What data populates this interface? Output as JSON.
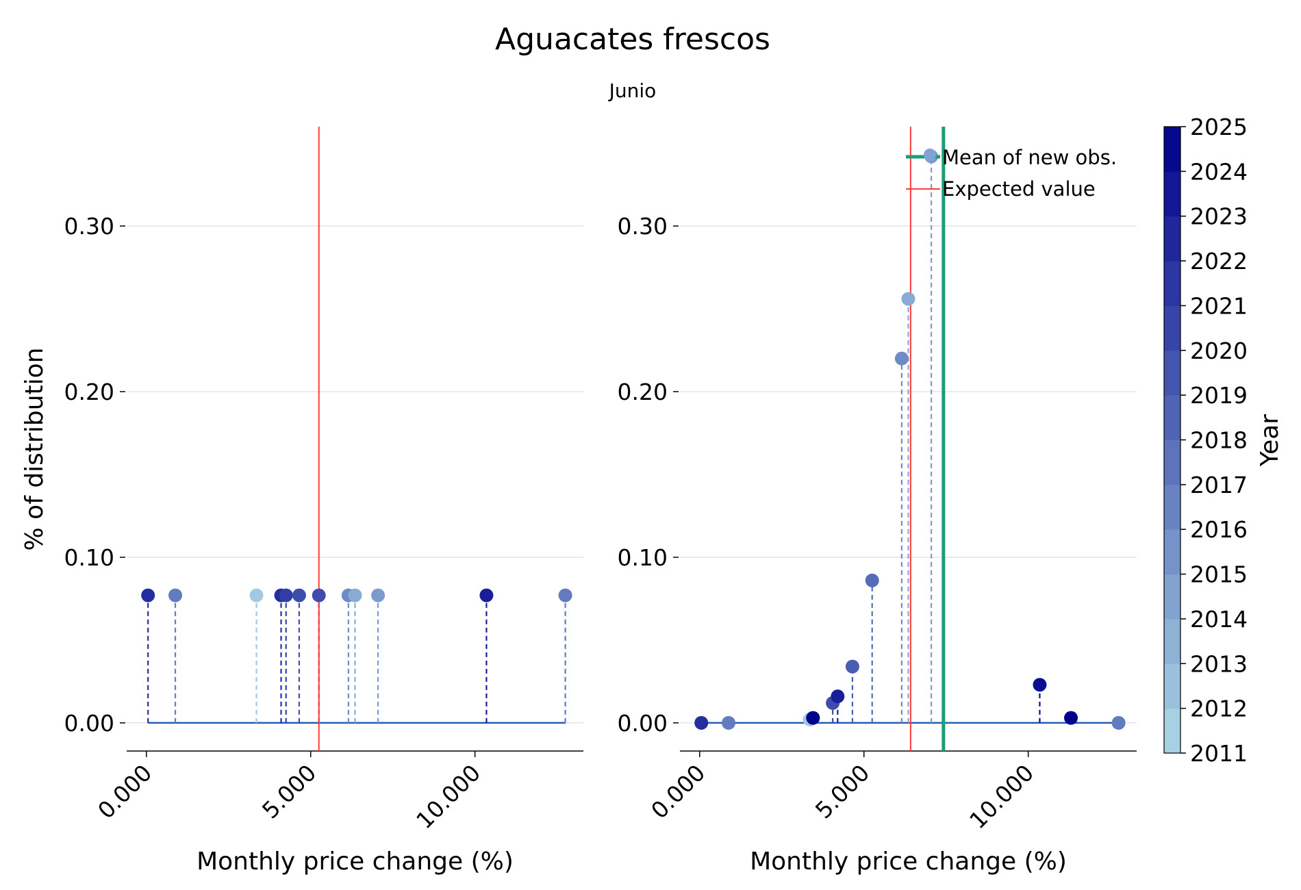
{
  "title": "Aguacates frescos",
  "subtitle": "Junio",
  "colors": {
    "expected": "#ff3b3b",
    "new_mean": "#1b9e77",
    "baseline": "#1f5fb4",
    "grid": "#dddddd",
    "colorbar_low": "#add8e6",
    "colorbar_high": "#00008b"
  },
  "colorbar": {
    "label": "Year",
    "ticks": [
      "2011",
      "2012",
      "2013",
      "2014",
      "2015",
      "2016",
      "2017",
      "2018",
      "2019",
      "2020",
      "2021",
      "2022",
      "2023",
      "2024",
      "2025"
    ]
  },
  "legend": {
    "new_mean_label": "Mean of new obs.",
    "expected_label": "Expected value"
  },
  "chart_data": [
    {
      "type": "scatter",
      "style": "lollipop",
      "xlabel": "Monthly price change (%)",
      "ylabel": "% of distribution",
      "xlim": [
        -0.6,
        13.3
      ],
      "ylim": [
        -0.017,
        0.36
      ],
      "xticks": [
        0,
        5,
        10
      ],
      "xtick_labels": [
        "0.000",
        "5.000",
        "10.000"
      ],
      "yticks": [
        0,
        0.1,
        0.2,
        0.3
      ],
      "ytick_labels": [
        "0.00",
        "0.10",
        "0.20",
        "0.30"
      ],
      "grid": "y",
      "expected_value": 5.25,
      "baseline": [
        0.05,
        12.75
      ],
      "points": [
        {
          "x": 0.05,
          "y": 0.077,
          "year": 2022
        },
        {
          "x": 0.88,
          "y": 0.077,
          "year": 2017
        },
        {
          "x": 3.35,
          "y": 0.077,
          "year": 2012
        },
        {
          "x": 4.1,
          "y": 0.077,
          "year": 2022
        },
        {
          "x": 4.25,
          "y": 0.077,
          "year": 2021
        },
        {
          "x": 4.65,
          "y": 0.077,
          "year": 2020
        },
        {
          "x": 5.25,
          "y": 0.077,
          "year": 2020
        },
        {
          "x": 6.15,
          "y": 0.077,
          "year": 2016
        },
        {
          "x": 6.35,
          "y": 0.077,
          "year": 2014
        },
        {
          "x": 7.05,
          "y": 0.077,
          "year": 2015
        },
        {
          "x": 10.35,
          "y": 0.077,
          "year": 2023
        },
        {
          "x": 12.75,
          "y": 0.077,
          "year": 2017
        }
      ]
    },
    {
      "type": "scatter",
      "style": "lollipop",
      "xlabel": "Monthly price change (%)",
      "ylabel": "",
      "xlim": [
        -0.6,
        13.3
      ],
      "ylim": [
        -0.017,
        0.36
      ],
      "xticks": [
        0,
        5,
        10
      ],
      "xtick_labels": [
        "0.000",
        "5.000",
        "10.000"
      ],
      "yticks": [
        0,
        0.1,
        0.2,
        0.3
      ],
      "ytick_labels": [
        "0.00",
        "0.10",
        "0.20",
        "0.30"
      ],
      "grid": "y",
      "expected_value": 6.42,
      "new_obs_mean": 7.42,
      "legend_position": "top-right",
      "baseline": [
        0.05,
        12.75
      ],
      "points": [
        {
          "x": 0.05,
          "y": 0.0,
          "year": 2022
        },
        {
          "x": 0.88,
          "y": 0.0,
          "year": 2017
        },
        {
          "x": 3.35,
          "y": 0.002,
          "year": 2012
        },
        {
          "x": 3.45,
          "y": 0.003,
          "year": 2025
        },
        {
          "x": 4.05,
          "y": 0.012,
          "year": 2020
        },
        {
          "x": 4.2,
          "y": 0.016,
          "year": 2023
        },
        {
          "x": 4.65,
          "y": 0.034,
          "year": 2019
        },
        {
          "x": 5.25,
          "y": 0.086,
          "year": 2018
        },
        {
          "x": 6.15,
          "y": 0.22,
          "year": 2016
        },
        {
          "x": 6.35,
          "y": 0.256,
          "year": 2014
        },
        {
          "x": 7.05,
          "y": 0.342,
          "year": 2015
        },
        {
          "x": 10.35,
          "y": 0.023,
          "year": 2024
        },
        {
          "x": 11.3,
          "y": 0.003,
          "year": 2025
        },
        {
          "x": 12.75,
          "y": 0.0,
          "year": 2017
        }
      ]
    }
  ]
}
